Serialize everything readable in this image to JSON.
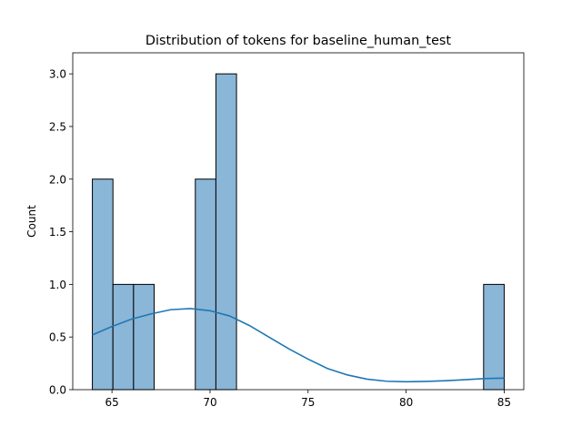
{
  "chart_data": {
    "type": "bar",
    "title": "Distribution of tokens for baseline_human_test",
    "xlabel": "",
    "ylabel": "Count",
    "xlim": [
      63,
      86
    ],
    "ylim": [
      0,
      3.2
    ],
    "x_ticks": [
      65,
      70,
      75,
      80,
      85
    ],
    "y_ticks": [
      0.0,
      0.5,
      1.0,
      1.5,
      2.0,
      2.5,
      3.0
    ],
    "x_tick_labels": [
      "65",
      "70",
      "75",
      "80",
      "85"
    ],
    "y_tick_labels": [
      "0.0",
      "0.5",
      "1.0",
      "1.5",
      "2.0",
      "2.5",
      "3.0"
    ],
    "grid": false,
    "bins": [
      {
        "x0": 64.0,
        "x1": 65.05,
        "count": 2
      },
      {
        "x0": 65.05,
        "x1": 66.1,
        "count": 1
      },
      {
        "x0": 66.1,
        "x1": 67.15,
        "count": 1
      },
      {
        "x0": 69.25,
        "x1": 70.3,
        "count": 2
      },
      {
        "x0": 70.3,
        "x1": 71.35,
        "count": 3
      },
      {
        "x0": 83.95,
        "x1": 85.0,
        "count": 1
      }
    ],
    "kde": {
      "x": [
        64,
        65,
        66,
        67,
        68,
        69,
        70,
        71,
        72,
        73,
        74,
        75,
        76,
        77,
        78,
        79,
        80,
        81,
        82,
        83,
        84,
        85
      ],
      "y": [
        0.52,
        0.6,
        0.67,
        0.72,
        0.76,
        0.77,
        0.75,
        0.7,
        0.61,
        0.5,
        0.39,
        0.29,
        0.2,
        0.14,
        0.1,
        0.08,
        0.075,
        0.078,
        0.085,
        0.095,
        0.105,
        0.11
      ]
    },
    "colors": {
      "bar_fill": "#8ab6d8",
      "bar_edge": "#000000",
      "kde_line": "#1f77b4"
    }
  }
}
